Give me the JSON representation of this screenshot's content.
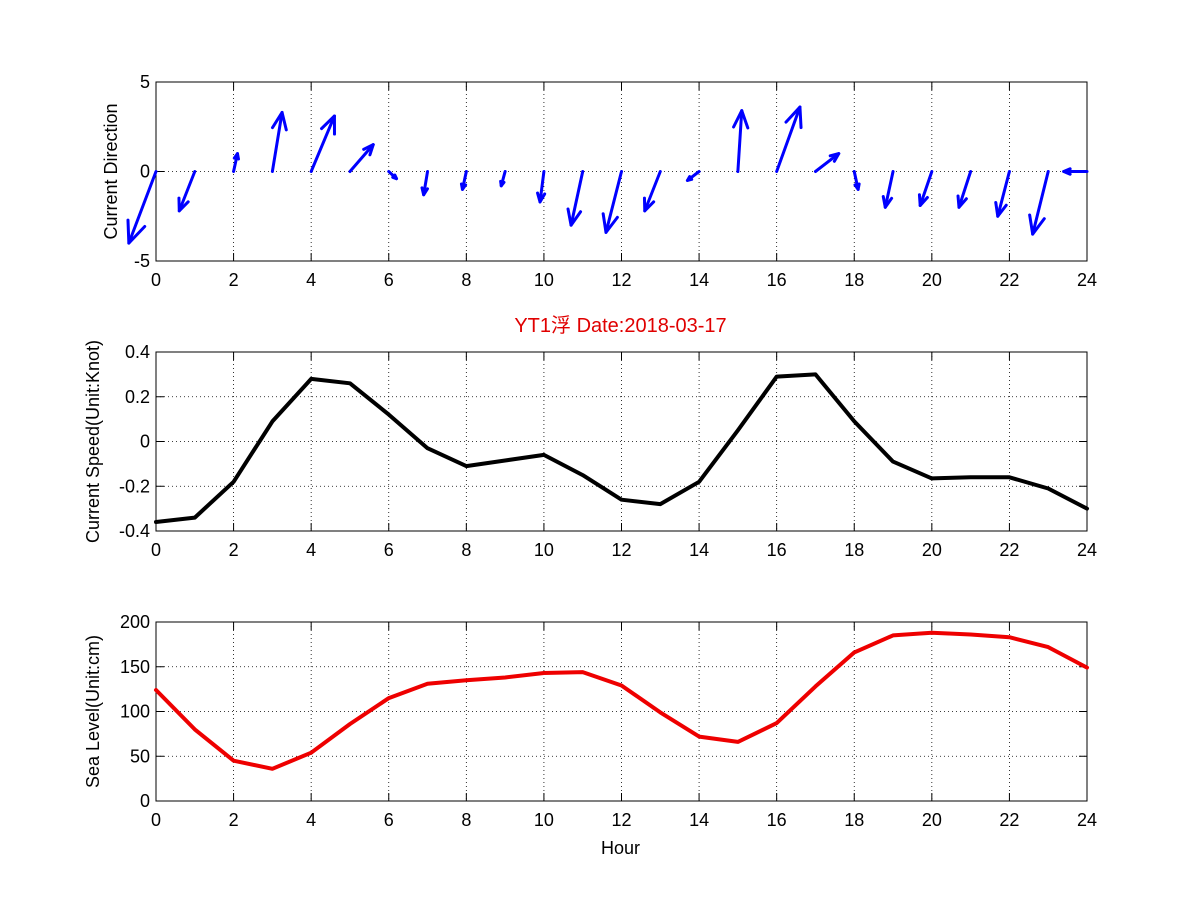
{
  "figure": {
    "title": "YT1浮    Date:2018-03-17",
    "title_color": "#e00000",
    "xlabel": "Hour"
  },
  "chart_data": [
    {
      "type": "quiver",
      "ylabel": "Current Direction",
      "xlim": [
        0,
        24
      ],
      "ylim": [
        -5,
        5
      ],
      "xticks": [
        0,
        2,
        4,
        6,
        8,
        10,
        12,
        14,
        16,
        18,
        20,
        22,
        24
      ],
      "yticks": [
        -5,
        0,
        5
      ],
      "grid": true,
      "color": "#0000ff",
      "x": [
        0,
        1,
        2,
        3,
        4,
        5,
        6,
        7,
        8,
        9,
        10,
        11,
        12,
        13,
        14,
        15,
        16,
        17,
        18,
        19,
        20,
        21,
        22,
        23,
        24
      ],
      "u": [
        -0.7,
        -0.4,
        0.1,
        0.25,
        0.6,
        0.6,
        0.2,
        -0.1,
        -0.1,
        -0.1,
        -0.1,
        -0.3,
        -0.4,
        -0.4,
        -0.3,
        0.1,
        0.6,
        0.6,
        0.1,
        -0.2,
        -0.3,
        -0.3,
        -0.3,
        -0.4,
        -0.6
      ],
      "v": [
        -4.0,
        -2.2,
        1.0,
        3.3,
        3.1,
        1.5,
        -0.4,
        -1.3,
        -1.0,
        -0.8,
        -1.7,
        -3.0,
        -3.4,
        -2.2,
        -0.5,
        3.4,
        3.6,
        1.0,
        -1.0,
        -2.0,
        -1.9,
        -2.0,
        -2.5,
        -3.5,
        0
      ]
    },
    {
      "type": "line",
      "ylabel": "Current Speed(Unit:Knot)",
      "xlim": [
        0,
        24
      ],
      "ylim": [
        -0.4,
        0.4
      ],
      "xticks": [
        0,
        2,
        4,
        6,
        8,
        10,
        12,
        14,
        16,
        18,
        20,
        22,
        24
      ],
      "yticks": [
        -0.4,
        -0.2,
        0,
        0.2,
        0.4
      ],
      "ytick_labels": [
        "-0.4",
        "-0.2",
        "0",
        "0.2",
        "0.4"
      ],
      "grid": true,
      "color": "#000000",
      "x": [
        0,
        1,
        2,
        3,
        4,
        5,
        6,
        7,
        8,
        9,
        10,
        11,
        12,
        13,
        14,
        15,
        16,
        17,
        18,
        19,
        20,
        21,
        22,
        23,
        24
      ],
      "y": [
        -0.36,
        -0.34,
        -0.18,
        0.09,
        0.28,
        0.26,
        0.12,
        -0.03,
        -0.11,
        -0.085,
        -0.06,
        -0.15,
        -0.26,
        -0.28,
        -0.18,
        0.05,
        0.29,
        0.3,
        0.09,
        -0.09,
        -0.165,
        -0.16,
        -0.16,
        -0.21,
        -0.3
      ]
    },
    {
      "type": "line",
      "ylabel": "Sea Level(Unit:cm)",
      "xlabel": "Hour",
      "xlim": [
        0,
        24
      ],
      "ylim": [
        0,
        200
      ],
      "xticks": [
        0,
        2,
        4,
        6,
        8,
        10,
        12,
        14,
        16,
        18,
        20,
        22,
        24
      ],
      "yticks": [
        0,
        50,
        100,
        150,
        200
      ],
      "grid": true,
      "color": "#ee0000",
      "x": [
        0,
        1,
        2,
        3,
        4,
        5,
        6,
        7,
        8,
        9,
        10,
        11,
        12,
        13,
        14,
        15,
        16,
        17,
        18,
        19,
        20,
        21,
        22,
        23,
        24
      ],
      "y": [
        124,
        80,
        45,
        36,
        54,
        86,
        115,
        131,
        135,
        138,
        143,
        144,
        129,
        99,
        72,
        66,
        87,
        128,
        166,
        185,
        188,
        186,
        183,
        172,
        149
      ]
    }
  ]
}
